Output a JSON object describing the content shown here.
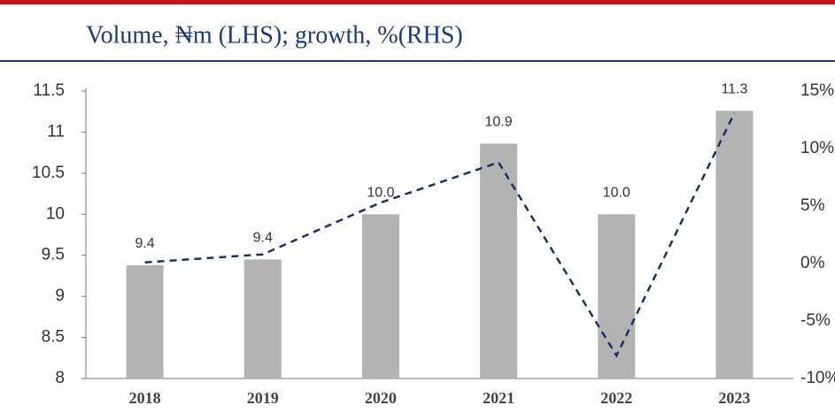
{
  "chart_data": {
    "type": "bar_line",
    "title": "Volume, ₦m (LHS); growth, %(RHS)",
    "categories": [
      "2018",
      "2019",
      "2020",
      "2021",
      "2022",
      "2023"
    ],
    "series": [
      {
        "type": "bar",
        "color": "#b3b3b3",
        "values": [
          9.38,
          9.45,
          10.0,
          10.86,
          10.0,
          11.26
        ],
        "value_labels": [
          "9.4",
          "9.4",
          "10.0",
          "10.9",
          "10.0",
          "11.3"
        ]
      },
      {
        "type": "line",
        "axis": "y2",
        "color": "#1f3064",
        "values": [
          0.1,
          0.8,
          5.3,
          8.8,
          -8.0,
          13.1
        ]
      }
    ],
    "ylim": [
      8,
      11.5
    ],
    "yticks": [
      8,
      8.5,
      9,
      9.5,
      10,
      10.5,
      11,
      11.5
    ],
    "y2lim": [
      -10,
      15
    ],
    "y2ticks": [
      {
        "value": -10,
        "label": "-10%"
      },
      {
        "value": -5,
        "label": "-5%"
      },
      {
        "value": 0,
        "label": "0%"
      },
      {
        "value": 5,
        "label": "5%"
      },
      {
        "value": 10,
        "label": "10%"
      },
      {
        "value": 15,
        "label": "15%"
      }
    ]
  }
}
